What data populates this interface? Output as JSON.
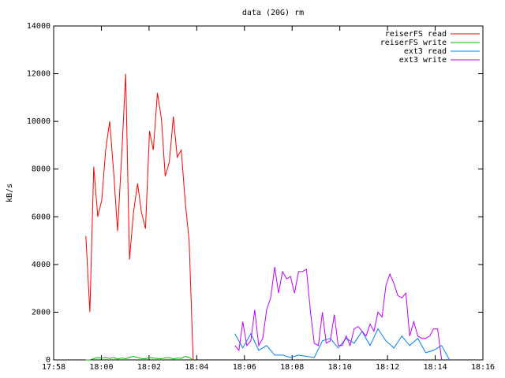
{
  "chart_data": {
    "type": "line",
    "title": "data (20G) rm",
    "y_label": "kB/s",
    "xlim": [
      1078,
      1096
    ],
    "xticks": [
      {
        "value": 1078,
        "label": "17:58"
      },
      {
        "value": 1080,
        "label": "18:00"
      },
      {
        "value": 1082,
        "label": "18:02"
      },
      {
        "value": 1084,
        "label": "18:04"
      },
      {
        "value": 1086,
        "label": "18:06"
      },
      {
        "value": 1088,
        "label": "18:08"
      },
      {
        "value": 1090,
        "label": "18:10"
      },
      {
        "value": 1092,
        "label": "18:12"
      },
      {
        "value": 1094,
        "label": "18:14"
      },
      {
        "value": 1096,
        "label": "18:16"
      }
    ],
    "ylim": [
      0,
      14000
    ],
    "yticks": [
      0,
      2000,
      4000,
      6000,
      8000,
      10000,
      12000,
      14000
    ],
    "legend": "top right",
    "series": [
      {
        "name": "reiserFS read",
        "color": "#ff0000",
        "x": [
          1079.35,
          1079.52,
          1079.68,
          1079.85,
          1080.02,
          1080.18,
          1080.35,
          1080.52,
          1080.68,
          1080.85,
          1081.02,
          1081.18,
          1081.35,
          1081.52,
          1081.68,
          1081.85,
          1082.02,
          1082.18,
          1082.35,
          1082.52,
          1082.68,
          1082.85,
          1083.02,
          1083.18,
          1083.35,
          1083.52,
          1083.68,
          1083.85
        ],
        "values": [
          5200,
          2000,
          8100,
          6000,
          6700,
          8800,
          10000,
          7800,
          5400,
          8500,
          12000,
          4200,
          6200,
          7400,
          6200,
          5500,
          9600,
          8800,
          11200,
          10100,
          7700,
          8300,
          10200,
          8500,
          8800,
          6600,
          5000,
          0
        ]
      },
      {
        "name": "reiserFS write",
        "color": "#00c000",
        "x": [
          1079.35,
          1079.52,
          1079.68,
          1079.85,
          1080.02,
          1080.18,
          1080.35,
          1080.52,
          1080.68,
          1080.85,
          1081.02,
          1081.18,
          1081.35,
          1081.52,
          1081.68,
          1081.85,
          1082.02,
          1082.18,
          1082.35,
          1082.52,
          1082.68,
          1082.85,
          1083.02,
          1083.18,
          1083.35,
          1083.52,
          1083.68,
          1083.85
        ],
        "values": [
          0,
          0,
          50,
          100,
          80,
          100,
          60,
          100,
          40,
          80,
          50,
          100,
          150,
          100,
          60,
          50,
          100,
          80,
          60,
          50,
          80,
          100,
          40,
          80,
          60,
          150,
          100,
          0
        ]
      },
      {
        "name": "ext3 read",
        "color": "#0080ff",
        "x": [
          1085.6,
          1085.93,
          1086.27,
          1086.6,
          1086.93,
          1087.27,
          1087.6,
          1087.93,
          1088.27,
          1088.6,
          1088.93,
          1089.27,
          1089.6,
          1089.93,
          1090.27,
          1090.6,
          1090.93,
          1091.27,
          1091.6,
          1091.93,
          1092.27,
          1092.6,
          1092.93,
          1093.27,
          1093.6,
          1093.93,
          1094.27,
          1094.6
        ],
        "values": [
          1100,
          500,
          1100,
          400,
          600,
          200,
          200,
          100,
          200,
          150,
          100,
          800,
          900,
          500,
          900,
          700,
          1200,
          600,
          1300,
          800,
          500,
          1000,
          600,
          900,
          300,
          400,
          600,
          0
        ]
      },
      {
        "name": "ext3 write",
        "color": "#c000ff",
        "x": [
          1085.6,
          1085.77,
          1085.93,
          1086.1,
          1086.27,
          1086.43,
          1086.6,
          1086.77,
          1086.93,
          1087.1,
          1087.27,
          1087.43,
          1087.6,
          1087.77,
          1087.93,
          1088.1,
          1088.27,
          1088.43,
          1088.6,
          1088.77,
          1088.93,
          1089.1,
          1089.27,
          1089.43,
          1089.6,
          1089.77,
          1089.93,
          1090.1,
          1090.27,
          1090.43,
          1090.6,
          1090.77,
          1090.93,
          1091.1,
          1091.27,
          1091.43,
          1091.6,
          1091.77,
          1091.93,
          1092.1,
          1092.27,
          1092.43,
          1092.6,
          1092.77,
          1092.93,
          1093.1,
          1093.27,
          1093.43,
          1093.6,
          1093.77,
          1093.93,
          1094.1,
          1094.27
        ],
        "values": [
          600,
          400,
          1600,
          600,
          800,
          2100,
          600,
          900,
          2100,
          2600,
          3900,
          2800,
          3700,
          3400,
          3500,
          2800,
          3700,
          3700,
          3800,
          2000,
          700,
          600,
          2000,
          700,
          800,
          1900,
          600,
          600,
          1000,
          600,
          1300,
          1400,
          1200,
          1000,
          1500,
          1200,
          2000,
          1800,
          3100,
          3600,
          3200,
          2700,
          2600,
          2800,
          1000,
          1600,
          1000,
          900,
          900,
          1000,
          1300,
          1300,
          0
        ]
      }
    ]
  }
}
